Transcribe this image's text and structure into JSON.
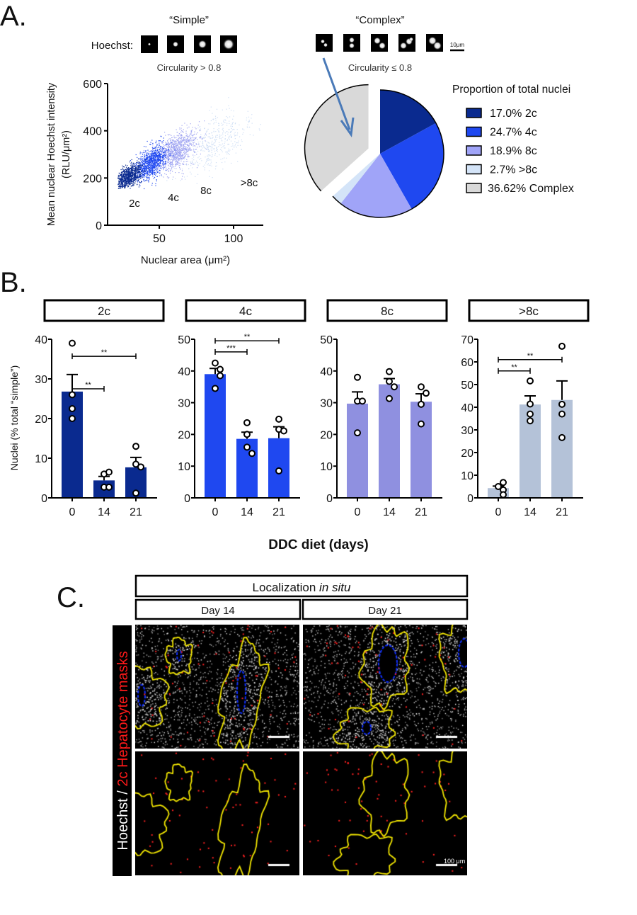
{
  "figure": {
    "panel_a": {
      "label": "A.",
      "simple_title": "“Simple”",
      "hoechst_label": "Hoechst:",
      "simple_criterion": "Circularity > 0.8",
      "complex_title": "“Complex”",
      "complex_criterion": "Circularity ≤ 0.8",
      "scale_bar_label": "10μm"
    },
    "panel_b": {
      "label": "B.",
      "xlabel": "DDC diet (days)",
      "ylabel": "Nuclei (% total “simple”)"
    },
    "panel_c": {
      "label": "C.",
      "title_prefix": "Localization ",
      "title_italic": "in situ",
      "columns": [
        "Day 14",
        "Day 21"
      ],
      "row_label_white": "Hoechst / ",
      "row_label_red": "2c Hepatocyte masks",
      "scale_bar_label": "100 μm",
      "colors": {
        "outline": "#f2e600",
        "vessel": "#1030ff",
        "mask_dot": "#ff2020"
      }
    }
  },
  "chart_data": [
    {
      "type": "scatter",
      "xlabel": "Nuclear area (μm²)",
      "ylabel_line1": "Mean nuclear Hoechst intensity",
      "ylabel_line2": "(RLU/μm²)",
      "xlim": [
        15,
        120
      ],
      "ylim": [
        0,
        600
      ],
      "xticks": [
        50,
        100
      ],
      "yticks": [
        0,
        200,
        400,
        600
      ],
      "series": [
        {
          "name": "2c",
          "color": "#0a2a8f",
          "center": [
            29,
            205
          ],
          "spread": [
            4.5,
            22
          ],
          "n": 900
        },
        {
          "name": "4c",
          "color": "#1f48f0",
          "center": [
            44,
            265
          ],
          "spread": [
            5,
            32
          ],
          "n": 900
        },
        {
          "name": "8c",
          "color": "#a4a8f2",
          "center": [
            61,
            318
          ],
          "spread": [
            7,
            38
          ],
          "n": 1000
        },
        {
          "name": ">8c",
          "color": "#d0dff5",
          "center": [
            86,
            345
          ],
          "spread": [
            12,
            55
          ],
          "n": 450
        }
      ]
    },
    {
      "type": "pie",
      "title": "Proportion of total nuclei",
      "exploded": "Complex",
      "slices": [
        {
          "label": "2c",
          "value": 17.0,
          "legend": "17.0% 2c",
          "color": "#0a2a8f"
        },
        {
          "label": "4c",
          "value": 24.7,
          "legend": "24.7% 4c",
          "color": "#1f48f0"
        },
        {
          "label": "8c",
          "value": 18.9,
          "legend": "18.9% 8c",
          "color": "#a0a4f8"
        },
        {
          "label": ">8c",
          "value": 2.7,
          "legend": "2.7% >8c",
          "color": "#d4e4f8"
        },
        {
          "label": "Complex",
          "value": 36.62,
          "legend": "36.62% Complex",
          "color": "#d9d9d9"
        }
      ]
    },
    {
      "type": "bar",
      "title": "2c",
      "categories": [
        "0",
        "14",
        "21"
      ],
      "means": [
        26.8,
        4.4,
        7.7
      ],
      "sem_upper": [
        31.1,
        5.4,
        10.2
      ],
      "points": [
        [
          39,
          26,
          22.5,
          20
        ],
        [
          6,
          6.5,
          2.7,
          2.7
        ],
        [
          13,
          8.5,
          7.8,
          1.2
        ]
      ],
      "ylim": [
        0,
        40
      ],
      "yticks": [
        0,
        10,
        20,
        30,
        40
      ],
      "color": "#0a2a8f",
      "significance": [
        {
          "from": 0,
          "to": 1,
          "label": "**",
          "y": 27.5
        },
        {
          "from": 0,
          "to": 2,
          "label": "**",
          "y": 35.7
        }
      ]
    },
    {
      "type": "bar",
      "title": "4c",
      "categories": [
        "0",
        "14",
        "21"
      ],
      "means": [
        39,
        18.6,
        18.8
      ],
      "sem_upper": [
        40.8,
        20.7,
        22.4
      ],
      "points": [
        [
          42.5,
          40.5,
          38.5,
          34.5
        ],
        [
          23.7,
          20,
          16,
          14
        ],
        [
          24.8,
          21.6,
          21.1,
          8.5
        ]
      ],
      "ylim": [
        0,
        50
      ],
      "yticks": [
        0,
        10,
        20,
        30,
        40,
        50
      ],
      "color": "#1f48f0",
      "significance": [
        {
          "from": 0,
          "to": 1,
          "label": "***",
          "y": 46
        },
        {
          "from": 0,
          "to": 2,
          "label": "**",
          "y": 49.5
        }
      ]
    },
    {
      "type": "bar",
      "title": "8c",
      "categories": [
        "0",
        "14",
        "21"
      ],
      "means": [
        29.7,
        35.8,
        30.3
      ],
      "sem_upper": [
        33.4,
        37.6,
        32.8
      ],
      "points": [
        [
          38,
          30.5,
          30.5,
          20.5
        ],
        [
          39.8,
          36.7,
          35,
          31.3
        ],
        [
          35,
          33,
          29.5,
          23.3
        ]
      ],
      "ylim": [
        0,
        50
      ],
      "yticks": [
        0,
        10,
        20,
        30,
        40,
        50
      ],
      "color": "#8f90e0",
      "significance": []
    },
    {
      "type": "bar",
      "title": ">8c",
      "categories": [
        "0",
        "14",
        "21"
      ],
      "means": [
        4.3,
        41.2,
        43.2
      ],
      "sem_upper": [
        5.2,
        45.0,
        51.6
      ],
      "points": [
        [
          5,
          6.8,
          3.5,
          1.4
        ],
        [
          51.6,
          41.4,
          37,
          34
        ],
        [
          66.9,
          41.3,
          37,
          26.6
        ]
      ],
      "ylim": [
        0,
        70
      ],
      "yticks": [
        0,
        10,
        20,
        30,
        40,
        50,
        60,
        70
      ],
      "color": "#b4c2d8",
      "significance": [
        {
          "from": 0,
          "to": 1,
          "label": "**",
          "y": 56
        },
        {
          "from": 0,
          "to": 2,
          "label": "**",
          "y": 61
        }
      ]
    }
  ]
}
